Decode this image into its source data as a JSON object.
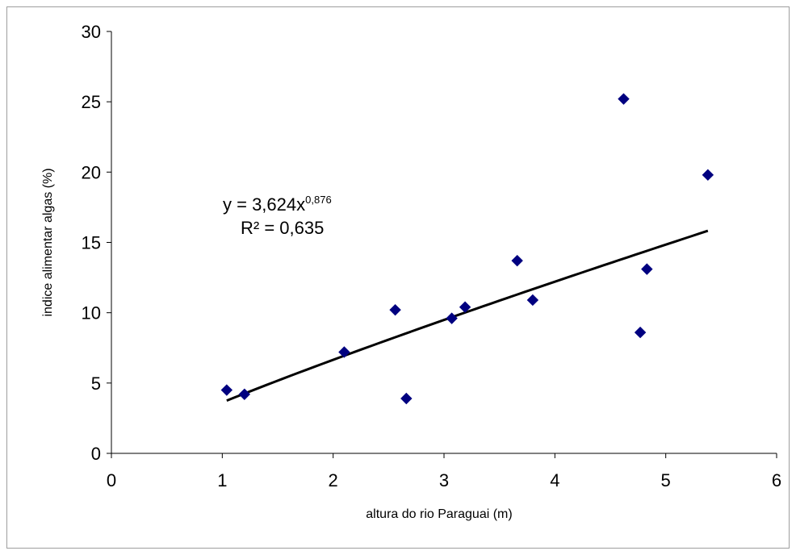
{
  "chart_data": {
    "type": "scatter",
    "title": "",
    "xlabel": "altura do rio Paraguai (m)",
    "ylabel": "indice alimentar algas (%)",
    "xlim": [
      0,
      6
    ],
    "ylim": [
      0,
      30
    ],
    "xticks": [
      "0",
      "1",
      "2",
      "3",
      "4",
      "5",
      "6"
    ],
    "yticks": [
      "0",
      "5",
      "10",
      "15",
      "20",
      "25",
      "30"
    ],
    "grid": false,
    "marker": "diamond",
    "marker_color": "#000080",
    "trendline_color": "#000000",
    "points": [
      {
        "x": 1.04,
        "y": 4.5
      },
      {
        "x": 1.2,
        "y": 4.2
      },
      {
        "x": 2.1,
        "y": 7.2
      },
      {
        "x": 2.56,
        "y": 10.2
      },
      {
        "x": 2.66,
        "y": 3.9
      },
      {
        "x": 3.07,
        "y": 9.6
      },
      {
        "x": 3.19,
        "y": 10.4
      },
      {
        "x": 3.66,
        "y": 13.7
      },
      {
        "x": 3.8,
        "y": 10.9
      },
      {
        "x": 4.62,
        "y": 25.2
      },
      {
        "x": 4.77,
        "y": 8.6
      },
      {
        "x": 4.83,
        "y": 13.1
      },
      {
        "x": 5.38,
        "y": 19.8
      }
    ],
    "trendline": {
      "type": "power",
      "a": 3.624,
      "b": 0.876,
      "x_range": [
        1.04,
        5.38
      ]
    },
    "annotation": {
      "eq_prefix": "y = 3,624x",
      "eq_exponent": "0,876",
      "r2": "R² = 0,635"
    }
  }
}
